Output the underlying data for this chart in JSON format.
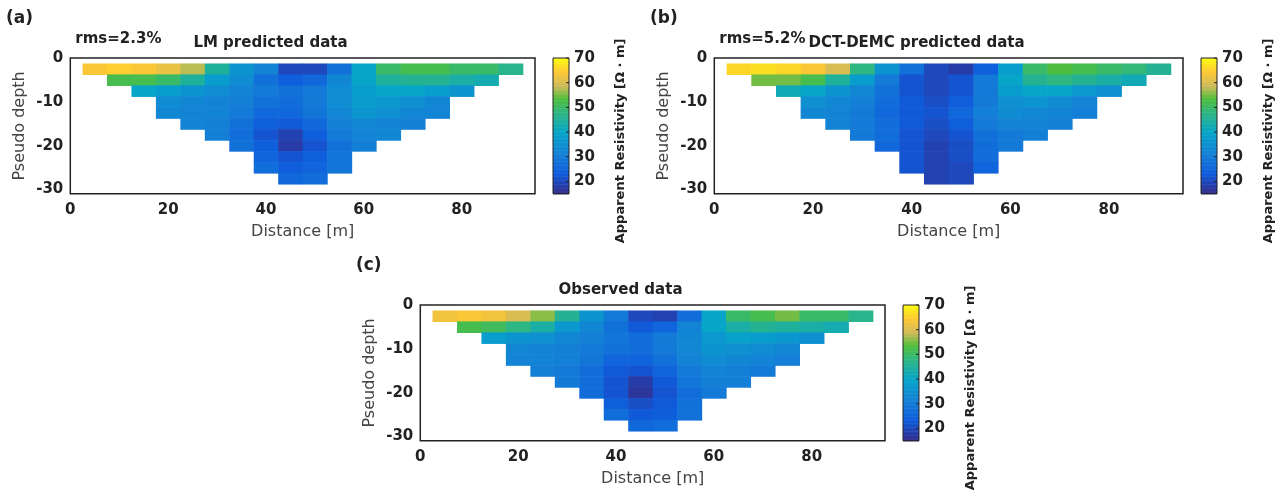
{
  "chart_data": [
    {
      "type": "heatmap",
      "title": "LM predicted data",
      "xlabel": "Distance [m]",
      "ylabel": "Pseudo depth",
      "clabel": "Apparent Resistivity [Ω · m]",
      "annotations": [
        "(a)",
        "rms=2.3%"
      ],
      "x": [
        5,
        10,
        15,
        20,
        25,
        30,
        35,
        40,
        45,
        50,
        55,
        60,
        65,
        70,
        75,
        80,
        85,
        90
      ],
      "y": [
        -2.5,
        -5,
        -7.5,
        -10,
        -12.5,
        -15,
        -17.5,
        -20,
        -22.5,
        -25,
        -27.5
      ],
      "xlim": [
        0,
        95
      ],
      "xticks": [
        0,
        20,
        40,
        60,
        80
      ],
      "ylim": [
        -31,
        0
      ],
      "yticks": [
        -30,
        -20,
        -10,
        0
      ],
      "clim": [
        15,
        70
      ],
      "cticks": [
        20,
        30,
        40,
        50,
        60,
        70
      ],
      "cells": [
        [
          64,
          65,
          64,
          62,
          58,
          45,
          36,
          32,
          20,
          20,
          28,
          40,
          50,
          52,
          52,
          50,
          50,
          47
        ],
        [
          null,
          52,
          52,
          50,
          45,
          38,
          34,
          28,
          24,
          26,
          33,
          40,
          45,
          46,
          46,
          44,
          43,
          null
        ],
        [
          null,
          null,
          40,
          38,
          36,
          34,
          32,
          30,
          28,
          30,
          34,
          38,
          40,
          40,
          38,
          36,
          null,
          null
        ],
        [
          null,
          null,
          null,
          34,
          33,
          32,
          31,
          28,
          27,
          30,
          34,
          38,
          37,
          35,
          33,
          null,
          null,
          null
        ],
        [
          null,
          null,
          null,
          33,
          32,
          32,
          30,
          26,
          26,
          29,
          33,
          36,
          35,
          33,
          32,
          null,
          null,
          null
        ],
        [
          null,
          null,
          null,
          null,
          32,
          31,
          28,
          24,
          23,
          26,
          31,
          33,
          32,
          31,
          null,
          null,
          null,
          null
        ],
        [
          null,
          null,
          null,
          null,
          null,
          31,
          27,
          22,
          19,
          24,
          30,
          32,
          33,
          null,
          null,
          null,
          null,
          null
        ],
        [
          null,
          null,
          null,
          null,
          null,
          null,
          28,
          24,
          18,
          22,
          28,
          31,
          null,
          null,
          null,
          null,
          null,
          null
        ],
        [
          null,
          null,
          null,
          null,
          null,
          null,
          null,
          25,
          22,
          24,
          29,
          null,
          null,
          null,
          null,
          null,
          null,
          null
        ],
        [
          null,
          null,
          null,
          null,
          null,
          null,
          null,
          27,
          24,
          25,
          29,
          null,
          null,
          null,
          null,
          null,
          null,
          null
        ],
        [
          null,
          null,
          null,
          null,
          null,
          null,
          null,
          null,
          26,
          27,
          null,
          null,
          null,
          null,
          null,
          null,
          null,
          null
        ]
      ]
    },
    {
      "type": "heatmap",
      "title": "DCT-DEMC predicted data",
      "xlabel": "Distance [m]",
      "ylabel": "Pseudo depth",
      "clabel": "Apparent Resistivity [Ω · m]",
      "annotations": [
        "(b)",
        "rms=5.2%"
      ],
      "x": [
        5,
        10,
        15,
        20,
        25,
        30,
        35,
        40,
        45,
        50,
        55,
        60,
        65,
        70,
        75,
        80,
        85,
        90
      ],
      "y": [
        -2.5,
        -5,
        -7.5,
        -10,
        -12.5,
        -15,
        -17.5,
        -20,
        -22.5,
        -25,
        -27.5
      ],
      "xlim": [
        0,
        95
      ],
      "xticks": [
        0,
        20,
        40,
        60,
        80
      ],
      "ylim": [
        -31,
        0
      ],
      "yticks": [
        -30,
        -20,
        -10,
        0
      ],
      "clim": [
        15,
        70
      ],
      "cticks": [
        20,
        30,
        40,
        50,
        60,
        70
      ],
      "cells": [
        [
          66,
          67,
          66,
          64,
          60,
          48,
          36,
          28,
          20,
          18,
          24,
          38,
          50,
          53,
          52,
          50,
          49,
          46
        ],
        [
          null,
          55,
          55,
          52,
          45,
          38,
          30,
          22,
          20,
          22,
          30,
          40,
          46,
          48,
          46,
          44,
          42,
          null
        ],
        [
          null,
          null,
          42,
          40,
          36,
          33,
          28,
          22,
          20,
          22,
          30,
          38,
          40,
          40,
          37,
          35,
          null,
          null
        ],
        [
          null,
          null,
          null,
          35,
          33,
          31,
          27,
          23,
          21,
          24,
          30,
          35,
          36,
          34,
          32,
          null,
          null,
          null
        ],
        [
          null,
          null,
          null,
          33,
          32,
          30,
          26,
          23,
          22,
          26,
          31,
          34,
          33,
          32,
          31,
          null,
          null,
          null
        ],
        [
          null,
          null,
          null,
          null,
          32,
          30,
          27,
          23,
          21,
          24,
          30,
          32,
          32,
          31,
          null,
          null,
          null,
          null
        ],
        [
          null,
          null,
          null,
          null,
          null,
          30,
          27,
          22,
          20,
          22,
          28,
          30,
          31,
          null,
          null,
          null,
          null,
          null
        ],
        [
          null,
          null,
          null,
          null,
          null,
          null,
          26,
          22,
          19,
          21,
          27,
          30,
          null,
          null,
          null,
          null,
          null,
          null
        ],
        [
          null,
          null,
          null,
          null,
          null,
          null,
          null,
          22,
          19,
          21,
          27,
          null,
          null,
          null,
          null,
          null,
          null,
          null
        ],
        [
          null,
          null,
          null,
          null,
          null,
          null,
          null,
          22,
          19,
          20,
          25,
          null,
          null,
          null,
          null,
          null,
          null,
          null
        ],
        [
          null,
          null,
          null,
          null,
          null,
          null,
          null,
          null,
          19,
          20,
          null,
          null,
          null,
          null,
          null,
          null,
          null,
          null
        ]
      ]
    },
    {
      "type": "heatmap",
      "title": "Observed data",
      "xlabel": "Distance [m]",
      "ylabel": "Pseudo depth",
      "clabel": "Apparent Resistivity [Ω · m]",
      "annotations": [
        "(c)"
      ],
      "x": [
        5,
        10,
        15,
        20,
        25,
        30,
        35,
        40,
        45,
        50,
        55,
        60,
        65,
        70,
        75,
        80,
        85,
        90
      ],
      "y": [
        -2.5,
        -5,
        -7.5,
        -10,
        -12.5,
        -15,
        -17.5,
        -20,
        -22.5,
        -25,
        -27.5
      ],
      "xlim": [
        0,
        95
      ],
      "xticks": [
        0,
        20,
        40,
        60,
        80
      ],
      "ylim": [
        -31,
        0
      ],
      "yticks": [
        -30,
        -20,
        -10,
        0
      ],
      "clim": [
        15,
        70
      ],
      "cticks": [
        20,
        30,
        40,
        50,
        60,
        70
      ],
      "cells": [
        [
          63,
          64,
          63,
          60,
          56,
          46,
          36,
          30,
          20,
          19,
          27,
          40,
          50,
          52,
          55,
          50,
          50,
          47
        ],
        [
          null,
          52,
          51,
          48,
          44,
          37,
          33,
          28,
          23,
          25,
          32,
          40,
          44,
          46,
          45,
          44,
          43,
          null
        ],
        [
          null,
          null,
          38,
          36,
          35,
          33,
          31,
          29,
          27,
          30,
          33,
          37,
          39,
          38,
          37,
          35,
          null,
          null
        ],
        [
          null,
          null,
          null,
          33,
          32,
          31,
          30,
          28,
          27,
          30,
          33,
          36,
          35,
          34,
          33,
          null,
          null,
          null
        ],
        [
          null,
          null,
          null,
          32,
          32,
          31,
          29,
          25,
          25,
          28,
          32,
          34,
          33,
          32,
          31,
          null,
          null,
          null
        ],
        [
          null,
          null,
          null,
          null,
          31,
          30,
          27,
          23,
          22,
          25,
          30,
          32,
          31,
          30,
          null,
          null,
          null,
          null
        ],
        [
          null,
          null,
          null,
          null,
          null,
          30,
          27,
          22,
          18,
          23,
          29,
          31,
          31,
          null,
          null,
          null,
          null,
          null
        ],
        [
          null,
          null,
          null,
          null,
          null,
          null,
          27,
          22,
          17,
          22,
          27,
          30,
          null,
          null,
          null,
          null,
          null,
          null
        ],
        [
          null,
          null,
          null,
          null,
          null,
          null,
          null,
          24,
          21,
          23,
          28,
          null,
          null,
          null,
          null,
          null,
          null,
          null
        ],
        [
          null,
          null,
          null,
          null,
          null,
          null,
          null,
          27,
          23,
          24,
          28,
          null,
          null,
          null,
          null,
          null,
          null,
          null
        ],
        [
          null,
          null,
          null,
          null,
          null,
          null,
          null,
          null,
          26,
          27,
          null,
          null,
          null,
          null,
          null,
          null,
          null,
          null
        ]
      ]
    }
  ]
}
